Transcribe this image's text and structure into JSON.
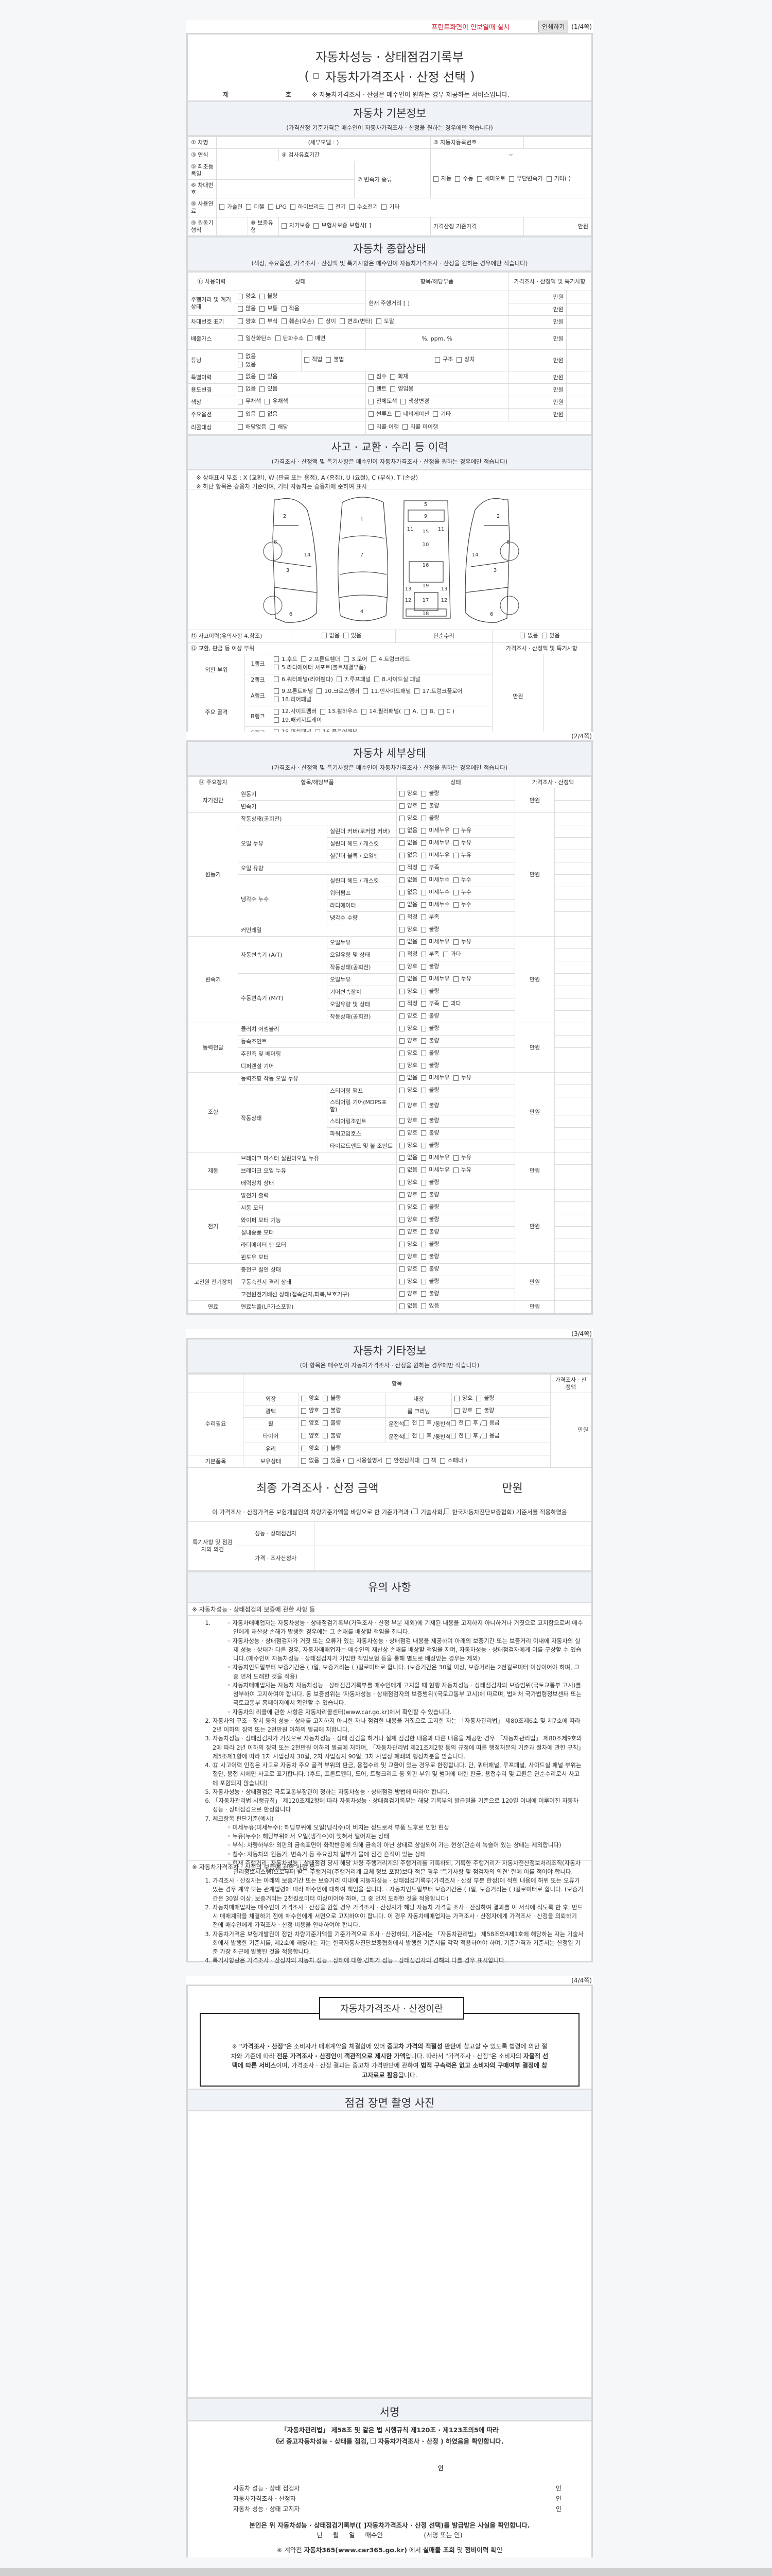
{
  "page1": {
    "notice": "프린트화면이 안보일때 설치",
    "print_button": "인쇄하기",
    "page": "(1/4쪽)"
  },
  "header": {
    "title": "자동차성능 · 상태점검기록부",
    "paren_open": "(",
    "subtitle": "자동차가격조사 · 산정 선택",
    "paren_close": ")",
    "no_prefix": "제",
    "no_suffix": "호",
    "notice": "※ 자동차가격조사 · 산정은 매수인이 원하는 경우 제공하는 서비스입니다."
  },
  "basic": {
    "title": "자동차 기본정보",
    "note": "(가격산정 기준가격은 매수인이 자동차가격조사 · 산정을 원하는 경우에만 적습니다)",
    "car_name": "① 차명",
    "sub_model": "(세부모델 :                    )",
    "reg_no": "② 자동차등록번호",
    "year": "③ 연식",
    "inspection": "④ 검사유효기간",
    "inspection_value": "~",
    "first_reg": "⑤ 최초등록일",
    "vin": "⑥ 차대번호",
    "transmission": "⑦ 변속기 종류",
    "transmission_options": [
      "자동",
      "수동",
      "세미오토",
      "무단변속기",
      "기타(             )"
    ],
    "fuel": "⑧ 사용연료",
    "fuel_options": [
      "가솔린",
      "디젤",
      "LPG",
      "하이브리드",
      "전기",
      "수소전기",
      "기타"
    ],
    "engine": "⑨ 원동기형식",
    "warranty": "⑩ 보증유형",
    "warranty_options": [
      "자가보증",
      "보험사보증 보험사[          ]"
    ],
    "base_price": "가격산정 기준가격",
    "unit": "만원"
  },
  "summary": {
    "title": "자동차 종합상태",
    "note": "(색상, 주요옵션, 가격조사 · 산정액 및 특기사항은 매수인이 자동차가격조사 · 산정을 원하는 경우에만 적습니다)",
    "headers": [
      "⑪ 사용이력",
      "상태",
      "항목/해당부품",
      "가격조사 · 산정액 및 특기사항"
    ],
    "unit": "만원",
    "mileage": {
      "label": "주행거리 및 계기상태",
      "opts1": [
        "양호",
        "불량"
      ],
      "opts2": [
        "많음",
        "보통",
        "적음"
      ],
      "current": "현재 주행거리 [                    ]"
    },
    "vin_mark": {
      "label": "차대번호 표기",
      "opts": [
        "양호",
        "부식",
        "훼손(오손)",
        "상이",
        "변조(변타)",
        "도말"
      ]
    },
    "emission": {
      "label": "배출가스",
      "opts": [
        "일산화탄소",
        "탄화수소",
        "매연"
      ],
      "values": "%,       ppm,       %"
    },
    "tuning": {
      "label": "튜닝",
      "opts1": [
        "없음",
        "있음"
      ],
      "opts2": [
        "적법",
        "불법"
      ],
      "opts3": [
        "구조",
        "장치"
      ]
    },
    "special": {
      "label": "특별이력",
      "opts1": [
        "없음",
        "있음"
      ],
      "opts2": [
        "침수",
        "화재"
      ]
    },
    "usage": {
      "label": "용도변경",
      "opts1": [
        "없음",
        "있음"
      ],
      "opts2": [
        "렌트",
        "영업용"
      ]
    },
    "color": {
      "label": "색상",
      "opts1": [
        "무채색",
        "유채색"
      ],
      "opts2": [
        "전체도색",
        "색상변경"
      ]
    },
    "options": {
      "label": "주요옵션",
      "opts1": [
        "있음",
        "없음"
      ],
      "opts2": [
        "썬루프",
        "네비게이션",
        "기타"
      ]
    },
    "recall": {
      "label": "리콜대상",
      "opts1": [
        "해당없음",
        "해당"
      ],
      "opts2": [
        "리콜 이행",
        "리콜 미이행"
      ]
    }
  },
  "accident": {
    "title": "사고 · 교환 · 수리 등 이력",
    "note": "(가격조사 · 산정액 및 특기사항은 매수인이 자동차가격조사 · 산정을 원하는 경우에만 적습니다)",
    "legend1": "※ 상태표시 부호 : X (교환), W (판금 또는 용접), A (흠집), U (요철), C (부식), T (손상)",
    "legend2": "※ 하단 항목은 승용차 기준이며, 기타 자동차는 승용차에 준하여 표시",
    "diagram_parts": [
      "1",
      "2",
      "3",
      "4",
      "5",
      "6",
      "7",
      "8",
      "9",
      "10",
      "11",
      "12",
      "13",
      "14",
      "15",
      "16",
      "17",
      "18",
      "19"
    ],
    "history": "⑫ 사고이력(유의사항 4.참조)",
    "history_opts": [
      "없음",
      "있음"
    ],
    "simple_repair": "단순수리",
    "simple_opts": [
      "없음",
      "있음"
    ],
    "parts_label": "⑬ 교환, 판금 등 이상 부위",
    "price_label": "가격조사 · 산정액 및 특기사항",
    "unit": "만원",
    "outer": "외판 부위",
    "frame": "주요 골격",
    "rank1": "1랭크",
    "rank1_opts": [
      "1.후드",
      "2.프론트휀더",
      "3.도어",
      "4.트렁크리드",
      "5.라디에이터 서포트(볼트체결부품)"
    ],
    "rank2": "2랭크",
    "rank2_opts": [
      "6.쿼터패널(리어휀다)",
      "7.루프패널",
      "8.사이드실 패널"
    ],
    "rankA": "A랭크",
    "rankA_opts": [
      "9.프론트패널",
      "10.크로스멤버",
      "11.인사이드패널",
      "17.트렁크플로어",
      "18.리어패널"
    ],
    "rankB": "B랭크",
    "rankB_opts": [
      "12.사이드멤버",
      "13.휠하우스",
      "14.필러패널(",
      "A,",
      "B,",
      "C )",
      "19.패키지트레이"
    ],
    "rankC": "C랭크",
    "rankC_opts": [
      "15.대쉬패널",
      "16.플로어패널"
    ]
  },
  "page2": {
    "page": "(2/4쪽)"
  },
  "detail": {
    "title": "자동차 세부상태",
    "note": "(가격조사 · 산정액 및 특기사항은 매수인이 자동차가격조사 · 산정을 원하는 경우에만 적습니다)",
    "headers": [
      "⑭ 주요장치",
      "항목/해당부품",
      "상태",
      "가격조사 · 산정액"
    ],
    "unit": "만원",
    "option_sets": {
      "gb": [
        "양호",
        "불량"
      ],
      "leak_oil": [
        "없음",
        "미세누유",
        "누유"
      ],
      "leak_water": [
        "없음",
        "미세누수",
        "누수"
      ],
      "level": [
        "적정",
        "부족"
      ],
      "level3": [
        "적정",
        "부족",
        "과다"
      ],
      "none_some": [
        "없음",
        "있음"
      ]
    },
    "groups": [
      {
        "name": "자기진단",
        "items": [
          {
            "name": "원동기",
            "opts": "gb"
          },
          {
            "name": "변속기",
            "opts": "gb"
          }
        ]
      },
      {
        "name": "원동기",
        "items": [
          {
            "name": "작동상태(공회전)",
            "opts": "gb"
          },
          {
            "name": "오일 누유",
            "subs": [
              {
                "name": "실린더 커버(로커암 커버)",
                "opts": "leak_oil"
              },
              {
                "name": "실린더 헤드 / 개스킷",
                "opts": "leak_oil"
              },
              {
                "name": "실린더 블록 / 오일팬",
                "opts": "leak_oil"
              }
            ]
          },
          {
            "name": "오일 유량",
            "opts": "level"
          },
          {
            "name": "냉각수 누수",
            "subs": [
              {
                "name": "실린더 헤드 / 개스킷",
                "opts": "leak_water"
              },
              {
                "name": "워터펌프",
                "opts": "leak_water"
              },
              {
                "name": "라디에이터",
                "opts": "leak_water"
              },
              {
                "name": "냉각수 수량",
                "opts": "level"
              }
            ]
          },
          {
            "name": "커먼레일",
            "opts": "gb"
          }
        ]
      },
      {
        "name": "변속기",
        "items": [
          {
            "name": "자동변속기 (A/T)",
            "subs": [
              {
                "name": "오일누유",
                "opts": "leak_oil"
              },
              {
                "name": "오일유량 및 상태",
                "opts": "level3"
              },
              {
                "name": "작동상태(공회전)",
                "opts": "gb"
              }
            ]
          },
          {
            "name": "수동변속기 (M/T)",
            "subs": [
              {
                "name": "오일누유",
                "opts": "leak_oil"
              },
              {
                "name": "기어변속장치",
                "opts": "gb"
              },
              {
                "name": "오일유량 및 상태",
                "opts": "level3"
              },
              {
                "name": "작동상태(공회전)",
                "opts": "gb"
              }
            ]
          }
        ]
      },
      {
        "name": "동력전달",
        "items": [
          {
            "name": "클러치 어셈블리",
            "opts": "gb"
          },
          {
            "name": "등속조인트",
            "opts": "gb"
          },
          {
            "name": "추진축 및 베어링",
            "opts": "gb"
          },
          {
            "name": "디퍼렌셜 기어",
            "opts": "gb"
          }
        ]
      },
      {
        "name": "조향",
        "items": [
          {
            "name": "동력조향 작동 오일 누유",
            "opts": "leak_oil"
          },
          {
            "name": "작동상태",
            "subs": [
              {
                "name": "스티어링 펌프",
                "opts": "gb"
              },
              {
                "name": "스티어링 기어(MDPS포함)",
                "opts": "gb"
              },
              {
                "name": "스티어링조인트",
                "opts": "gb"
              },
              {
                "name": "파워고압호스",
                "opts": "gb"
              },
              {
                "name": "타이로드엔드 및 볼 조인트",
                "opts": "gb"
              }
            ]
          }
        ]
      },
      {
        "name": "제동",
        "items": [
          {
            "name": "브레이크 마스터 실린더오일 누유",
            "opts": "leak_oil"
          },
          {
            "name": "브레이크 오일 누유",
            "opts": "leak_oil"
          },
          {
            "name": "배력장치 상태",
            "opts": "gb"
          }
        ]
      },
      {
        "name": "전기",
        "items": [
          {
            "name": "발전기 출력",
            "opts": "gb"
          },
          {
            "name": "시동 모터",
            "opts": "gb"
          },
          {
            "name": "와이퍼 모터 기능",
            "opts": "gb"
          },
          {
            "name": "실내송풍 모터",
            "opts": "gb"
          },
          {
            "name": "라디에이터 팬 모터",
            "opts": "gb"
          },
          {
            "name": "윈도우 모터",
            "opts": "gb"
          }
        ]
      },
      {
        "name": "고전원 전기장치",
        "items": [
          {
            "name": "충전구 절연 상태",
            "opts": "gb"
          },
          {
            "name": "구동축전지 격리 상태",
            "opts": "gb"
          },
          {
            "name": "고전원전기배선 상태(접속단자,피복,보호기구)",
            "opts": "gb"
          }
        ]
      },
      {
        "name": "연료",
        "items": [
          {
            "name": "연료누출(LP가스포함)",
            "opts": "none_some"
          }
        ]
      }
    ]
  },
  "page3": {
    "page": "(3/4쪽)"
  },
  "other": {
    "title": "자동차 기타정보",
    "note": "(이 항목은 매수인이 자동차가격조사 · 산정을 원하는 경우에만 적습니다)",
    "item_header": "항목",
    "price_header": "가격조사 · 산정액",
    "unit": "만원",
    "repair": "수리필요",
    "basic_items": "기본품목",
    "gb": [
      "양호",
      "불량"
    ],
    "exterior": "외장",
    "interior": "내장",
    "gloss": "광택",
    "room": "룸 크리닝",
    "wheel": "휠",
    "tire": "타이어",
    "glass": "유리",
    "driver": "운전석",
    "passenger": "동반석",
    "pos": [
      "전",
      "후"
    ],
    "emergency": "응급",
    "slash": "/",
    "holding": "보유상태",
    "holding_opts": [
      "없음",
      "있음 ("
    ],
    "holding_items": [
      "사용설명서",
      "안전삼각대",
      "잭",
      "스패너 )"
    ]
  },
  "final": {
    "title": "최종 가격조사 · 산정 금액",
    "unit": "만원",
    "sentence_pre": "이 가격조사 · 산정가격은 보험개발원의 차량기준가액을 바탕으로 한 기준가격과 (",
    "opt1": "기술사회,",
    "opt2": "한국자동차진단보증협회) 기준서를 적용하였음",
    "opinion": "특기사항 및 점검자의 의견",
    "inspector": "성능 · 상태점검자",
    "appraiser": "가격 · 조사산정자"
  },
  "notes": {
    "title": "유의 사항",
    "h1": "※ 자동차성능 · 상태점검의 보증에 관한 사항 등",
    "item1_bullets": [
      "자동차매매업자는 자동차성능 · 상태점검기록부(가격조사 · 산정 부분 제외)에 기재된 내용을 고지하지 아니하거나 거짓으로 고지함으로써 매수인에게 재산상 손해가 발생한 경우에는 그 손해를 배상할 책임을 집니다.",
      "자동차성능 · 상태점검자가 거짓 또는 오류가 있는 자동차성능 · 상태점검 내용을 제공하여 아래의 보증기간 또는 보증거리 이내에 자동차의 실제 성능 · 상태가 다른 경우, 자동차매매업자는 매수인의 재산상 손해를 배상할 책임을 지며, 자동차성능 · 상태점검자에게 이를 구상할 수 있습니다.(매수인이 자동차성능 · 상태점검자가 가입한 책임보험 등을 통해 별도로 배상받는 경우는 제외)",
      "자동차인도일부터 보증기간은 (      )일, 보증거리는 (      )킬로미터로 합니다. (보증기간은 30일 이상, 보증거리는 2천킬로미터 이상이어야 하며, 그 중 먼저 도래한 것을 적용)",
      "자동차매매업자는 자동차 자동차성능 · 상태점검기록부를 매수인에게 고지할 때 현행 자동차성능 · 상태점검자의 보증범위(국토교통부 고시)를 첨부하여 고지하여야 합니다. 동 보증범위는 '자동차성능 · 상태점검자의 보증범위'(국토교통부 고시)에 따르며, 법제처 국가법령정보센터 또는 국토교통부 홈페이지에서 확인할 수 있습니다.",
      "자동차의 리콜에 관한 사항은 자동차리콜센터(www.car.go.kr)에서 확인할 수 있습니다."
    ],
    "items": [
      "자동차의 구조 · 장치 등의 성능 · 상태를 고지하지 아니한 자나 점검한 내용을 거짓으로 고지한 자는 「자동차관리법」 제80조제6호 및 제7호에 따라 2년 이하의 징역 또는 2천만원 이하의 벌금에 처합니다.",
      "자동차성능 · 상태점검자가 거짓으로 자동차성능 · 상태 점검을 하거나 실제 점검한 내용과 다른 내용을 제공한 경우 「자동차관리법」 제80조제9호의2에 따라 2년 이하의 징역 또는 2천만원 이하의 벌금에 처하며, 「자동차관리법 제21조제2항 등의 규정에 따른 행정처분의 기준과 절차에 관한 규칙」 제5조제1항에 따라 1차 사업정지 30일, 2차 사업정지 90일, 3차 사업장 폐쇄의 행정처분을 받습니다.",
      "⑫ 사고이력 인정은 사고로 자동차 주요 골격 부위의 판금, 용접수리 및 교환이 있는 경우로 한정합니다. 단, 쿼터패널, 루프패널, 사이드실 패널 부위는 절단, 용접 시에만 사고로 표기합니다. (후드, 프론트펜더, 도어, 트렁크리드 등 외판 부위 및 범퍼에 대한 판금, 용접수리 및 교환은 단순수리로서 사고에 포함되지 않습니다)",
      "자동차성능 · 상태점검은 국토교통부장관이 정하는 자동차성능 · 상태점검 방법에 따라야 합니다.",
      "「자동차관리법 시행규칙」 제120조제2항에 따라 자동차성능 · 상태점검기록부는 해당 기록부의 발급일을 기준으로 120일 이내에 이루어진 자동차 성능 · 상태점검으로 한정합니다",
      "체크항목 판단기준(예시)"
    ],
    "item7_bullets": [
      "미세누유(미세누수): 해당부위에 오일(냉각수)이 비치는 정도로서 부품 노후로 인한 현상",
      "누유(누수): 해당부위에서 오일(냉각수)이 맺혀서 떨어지는 상태",
      "부식: 차량하부와 외판의 금속표면이 화학반응에 의해 금속이 아닌 상태로 상실되어 가는 현상(단순히 녹슬어 있는 상태는 제외합니다)",
      "침수: 자동차의 원동기, 변속기 등 주요장치 일부가 물에 잠긴 흔적이 있는 상태",
      "현재 주행거리: 자동차성능 · 상태점검 당시 해당 차량 주행거리계의 주행거리를 기록하되, 기록한 주행거리가 자동차전산정보처리조직(자동차관리정보시스템)으로부터 받은 주행거리(주행거리계 교체 정보 포함)보다 적은 경우 '특기사항 및 점검자의 의견' 란에 이를 적어야 합니다."
    ],
    "h2": "※ 자동차가격조사 · 산정의 보증에 관한 사항 등",
    "price_items": [
      "가격조사 · 산정자는 아래의 보증기간 또는 보증거리 이내에 자동차성능 · 상태점검기록부(가격조사 · 산정 부분 한정)에 적힌 내용에 허위 또는 오류가 있는 경우 계약 또는 관계법령에 따라 매수인에 대하여 책임을 집니다. · 자동차인도일부터 보증기간은 (      )일, 보증거리는 (      )킬로미터로 합니다. (보증기간은 30일 이상, 보증거리는 2천킬로미터 이상이어야 하며, 그 중 먼저 도래한 것을 적용합니다)",
      "자동차매매업자는 매수인이 가격조사 · 산정을 원할 경우 가격조사 · 산정자가 해당 자동차 가격을 조사 · 산정하여 결과를 이 서식에 적도록 한 후, 반드시 매매계약을 체결하기 전에 매수인에게 서면으로 고지하여야 합니다. 이 경우 자동차매매업자는 가격조사 · 산정자에게 가격조사 · 산정을 의뢰하기 전에 매수인에게 가격조사 · 산정 비용을 안내하여야 합니다.",
      "자동차가격은 보험개발원이 정한 차량기준가액을 기준가격으로 조사 · 산정하되, 기준서는 「자동차관리법」 제58조의4제1호에 해당하는 자는 기술사회에서 발행한 기준서를, 제2호에 해당하는 자는 한국자동차진단보증협회에서 발행한 기준서를 각각 적용하여야 하며, 기준가격과 기준서는 산정일 기준 가장 최근에 발행된 것을 적용합니다.",
      "특기사항란은 가격조사 · 산정자의 자동차 성능 · 상태에 대한 견해가 성능 · 상태점검자의 견해와 다를 경우 표시합니다."
    ]
  },
  "page4": {
    "page": "(4/4쪽)"
  },
  "about": {
    "title": "자동차가격조사 · 산정이란",
    "body": [
      {
        "t": "※ ",
        "b": false
      },
      {
        "t": "\"가격조사 · 산정\"",
        "b": true
      },
      {
        "t": "은 소비자가 매매계약을 체결함에 있어 ",
        "b": false
      },
      {
        "t": "중고차 가격의 적절성 판단",
        "b": true
      },
      {
        "t": "에 참고할 수 있도록 법령에 의한 절차와 기준에 따라 ",
        "b": false
      },
      {
        "t": "전문 가격조사 · 산정인",
        "b": true
      },
      {
        "t": "이 ",
        "b": false
      },
      {
        "t": "객관적으로 제시한 가액",
        "b": true
      },
      {
        "t": "입니다. 따라서 \"가격조사 · 산정\"은 소비자의 ",
        "b": false
      },
      {
        "t": "자율적 선택에 따른 서비스",
        "b": true
      },
      {
        "t": "이며, 가격조사 · 산정 결과는 중고차 가격판단에 관하여 ",
        "b": false
      },
      {
        "t": "법적 구속력은 없고 소비자의 구매여부 결정에 참고자료로 활용",
        "b": true
      },
      {
        "t": "됩니다.",
        "b": false
      }
    ]
  },
  "photo": {
    "title": "점검 장면 촬영 사진"
  },
  "sign": {
    "title": "서명",
    "law": "「자동차관리법」 제58조 및 같은 법 시행규칙 제120조 · 제123조의5에 따라",
    "confirm_open": "(",
    "opt1": "중고자동차성능 · 상태를 점검,",
    "opt1_checked": true,
    "opt2": "자동차가격조사 · 산정 ) 하였음을 확인합니다.",
    "seal": "인",
    "signers": [
      "자동차 성능 · 상태 점검자",
      "자동차가격조사 · 산정자",
      "자동차 성능 · 상태 고지자"
    ],
    "buyer_confirm": "본인은 위 자동차성능 · 상태점검기록부([   ]자동차가격조사 · 산정 선택)를 발급받은 사실을 확인합니다.",
    "buyer_line": "년     월     일     매수인                    (서명 또는 인)",
    "car365_pre": "※ 계약전 ",
    "car365_link": "자동차365(www.car365.go.kr)",
    "car365_mid": " 에서 ",
    "car365_b1": "실매물 조회",
    "car365_and": " 및 ",
    "car365_b2": "정비이력",
    "car365_post": " 확인"
  }
}
